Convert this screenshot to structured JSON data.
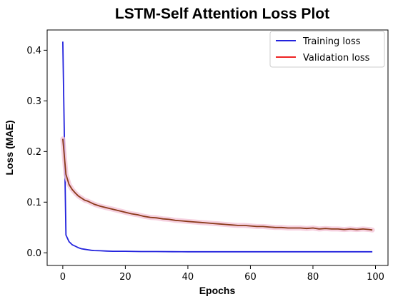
{
  "chart_data": {
    "type": "line",
    "title": "LSTM-Self Attention Loss Plot",
    "xlabel": "Epochs",
    "ylabel": "Loss (MAE)",
    "xlim": [
      -5,
      104
    ],
    "ylim": [
      -0.025,
      0.44
    ],
    "xticks": [
      0,
      20,
      40,
      60,
      80,
      100
    ],
    "yticks": [
      0.0,
      0.1,
      0.2,
      0.3,
      0.4
    ],
    "grid": false,
    "legend": "top-right",
    "series": [
      {
        "name": "Training loss",
        "color": "#2222dd",
        "x": [
          0,
          1,
          2,
          3,
          4,
          5,
          6,
          7,
          8,
          9,
          10,
          12,
          14,
          16,
          18,
          20,
          25,
          30,
          35,
          40,
          45,
          50,
          55,
          60,
          65,
          70,
          75,
          80,
          85,
          90,
          95,
          99
        ],
        "y": [
          0.417,
          0.035,
          0.022,
          0.016,
          0.013,
          0.01,
          0.008,
          0.007,
          0.006,
          0.005,
          0.0045,
          0.004,
          0.0035,
          0.003,
          0.003,
          0.003,
          0.0025,
          0.0025,
          0.0022,
          0.002,
          0.002,
          0.002,
          0.002,
          0.002,
          0.002,
          0.002,
          0.002,
          0.002,
          0.002,
          0.002,
          0.002,
          0.002
        ]
      },
      {
        "name": "Validation loss",
        "color": "#ee2222",
        "display_color": "#8b3a1a",
        "x": [
          0,
          1,
          2,
          3,
          4,
          5,
          6,
          7,
          8,
          9,
          10,
          12,
          14,
          16,
          18,
          20,
          22,
          24,
          26,
          28,
          30,
          32,
          34,
          36,
          38,
          40,
          42,
          44,
          46,
          48,
          50,
          52,
          54,
          56,
          58,
          60,
          62,
          64,
          66,
          68,
          70,
          72,
          74,
          76,
          78,
          80,
          82,
          84,
          86,
          88,
          90,
          92,
          94,
          96,
          98,
          99
        ],
        "y": [
          0.225,
          0.155,
          0.135,
          0.125,
          0.118,
          0.112,
          0.108,
          0.104,
          0.102,
          0.099,
          0.096,
          0.092,
          0.089,
          0.086,
          0.083,
          0.08,
          0.077,
          0.075,
          0.072,
          0.07,
          0.069,
          0.067,
          0.066,
          0.064,
          0.063,
          0.062,
          0.061,
          0.06,
          0.059,
          0.058,
          0.057,
          0.056,
          0.055,
          0.054,
          0.054,
          0.053,
          0.052,
          0.052,
          0.051,
          0.05,
          0.05,
          0.049,
          0.049,
          0.049,
          0.048,
          0.049,
          0.047,
          0.048,
          0.047,
          0.047,
          0.046,
          0.047,
          0.046,
          0.047,
          0.046,
          0.045
        ]
      }
    ]
  }
}
